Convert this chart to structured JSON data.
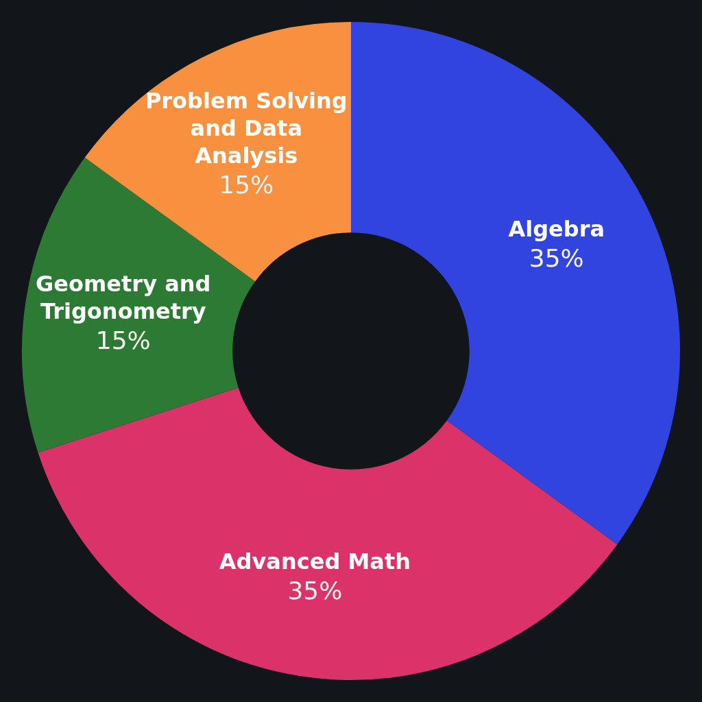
{
  "chart_data": {
    "type": "donut",
    "categories": [
      "Algebra",
      "Advanced Math",
      "Geometry and Trigonometry",
      "Problem Solving and Data Analysis"
    ],
    "values": [
      35,
      35,
      15,
      15
    ],
    "colors": [
      "#3144e0",
      "#db3369",
      "#2c7a34",
      "#f7913f"
    ],
    "value_labels": [
      "35%",
      "35%",
      "15%",
      "15%"
    ]
  }
}
